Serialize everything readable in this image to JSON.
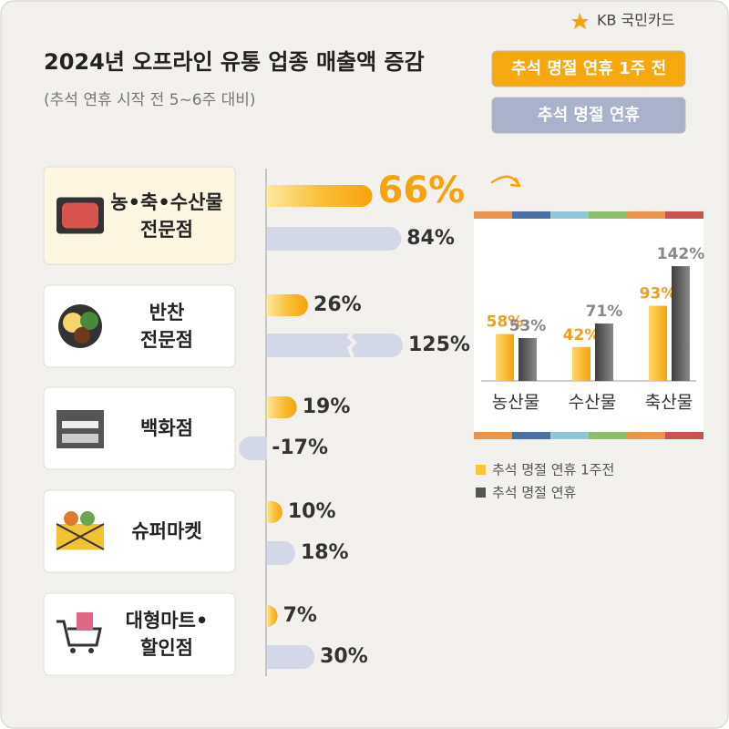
{
  "brand": "KB 국민카드",
  "chart_data": [
    {
      "type": "hbar",
      "title": "2024년 오프라인 유통 업종 매출액 증감",
      "subtitle": "(추석 연휴 시작 전 5~6주 대비)",
      "categories": [
        "농•축•수산물\n전문점",
        "반찬\n전문점",
        "백화점",
        "슈퍼마켓",
        "대형마트•\n할인점"
      ],
      "xlim": [
        -20,
        85
      ],
      "series": [
        {
          "name": "추석 명절 연휴 1주 전",
          "color": "#f7a30b",
          "values": [
            66,
            26,
            19,
            10,
            7
          ],
          "value_labels": [
            "66%",
            "26%",
            "19%",
            "10%",
            "7%"
          ]
        },
        {
          "name": "추석 명절 연휴",
          "color": "#d3d7e6",
          "values": [
            84,
            125,
            -17,
            18,
            30
          ],
          "value_labels": [
            "84%",
            "125%",
            "-17%",
            "18%",
            "30%"
          ]
        }
      ]
    },
    {
      "type": "bar",
      "categories": [
        "농산물",
        "수산물",
        "축산물"
      ],
      "ylim": [
        0,
        150
      ],
      "series": [
        {
          "name": "추석 명절 연휴 1주전",
          "color": "#f9c63a",
          "values": [
            58,
            42,
            93
          ],
          "value_labels": [
            "58%",
            "42%",
            "93%"
          ]
        },
        {
          "name": "추석 명절 연휴",
          "color": "#555555",
          "values": [
            53,
            71,
            142
          ],
          "value_labels": [
            "53%",
            "71%",
            "142%"
          ]
        }
      ]
    }
  ]
}
